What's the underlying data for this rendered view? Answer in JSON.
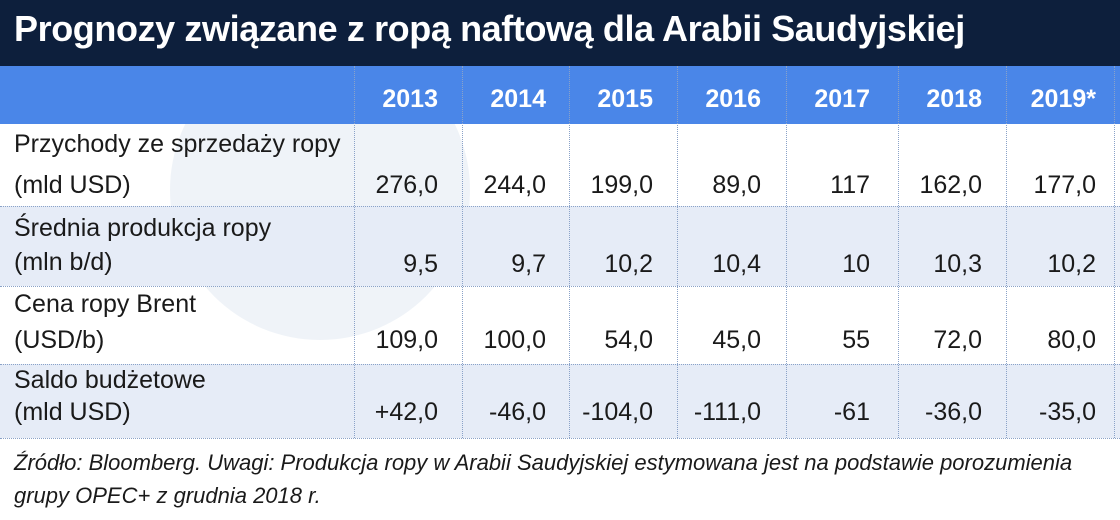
{
  "title": "Prognozy związane z ropą naftową dla Arabii Saudyjskiej",
  "years": [
    "2013",
    "2014",
    "2015",
    "2016",
    "2017",
    "2018",
    "2019*"
  ],
  "rows": [
    {
      "label1": "Przychody ze sprzedaży ropy",
      "label2": "(mld USD)",
      "values": [
        "276,0",
        "244,0",
        "199,0",
        "89,0",
        "117",
        "162,0",
        "177,0"
      ]
    },
    {
      "label1": "Średnia produkcja ropy",
      "label2": "(mln b/d)",
      "values": [
        "9,5",
        "9,7",
        "10,2",
        "10,4",
        "10",
        "10,3",
        "10,2"
      ]
    },
    {
      "label1": "Cena ropy Brent",
      "label2": "(USD/b)",
      "values": [
        "109,0",
        "100,0",
        "54,0",
        "45,0",
        "55",
        "72,0",
        "80,0"
      ]
    },
    {
      "label1": "Saldo budżetowe",
      "label2": "(mld USD)",
      "values": [
        "+42,0",
        "-46,0",
        "-104,0",
        "-111,0",
        "-61",
        "-36,0",
        "-35,0"
      ]
    }
  ],
  "footnote": "Źródło: Bloomberg. Uwagi: Produkcja ropy w Arabii Saudyjskiej estymowana jest na podstawie porozumienia grupy OPEC+ z grudnia 2018 r.",
  "colors": {
    "title_bg": "#0d1f3c",
    "header_bg": "#4a86e8",
    "alt_row_bg": "#e6ecf7"
  }
}
